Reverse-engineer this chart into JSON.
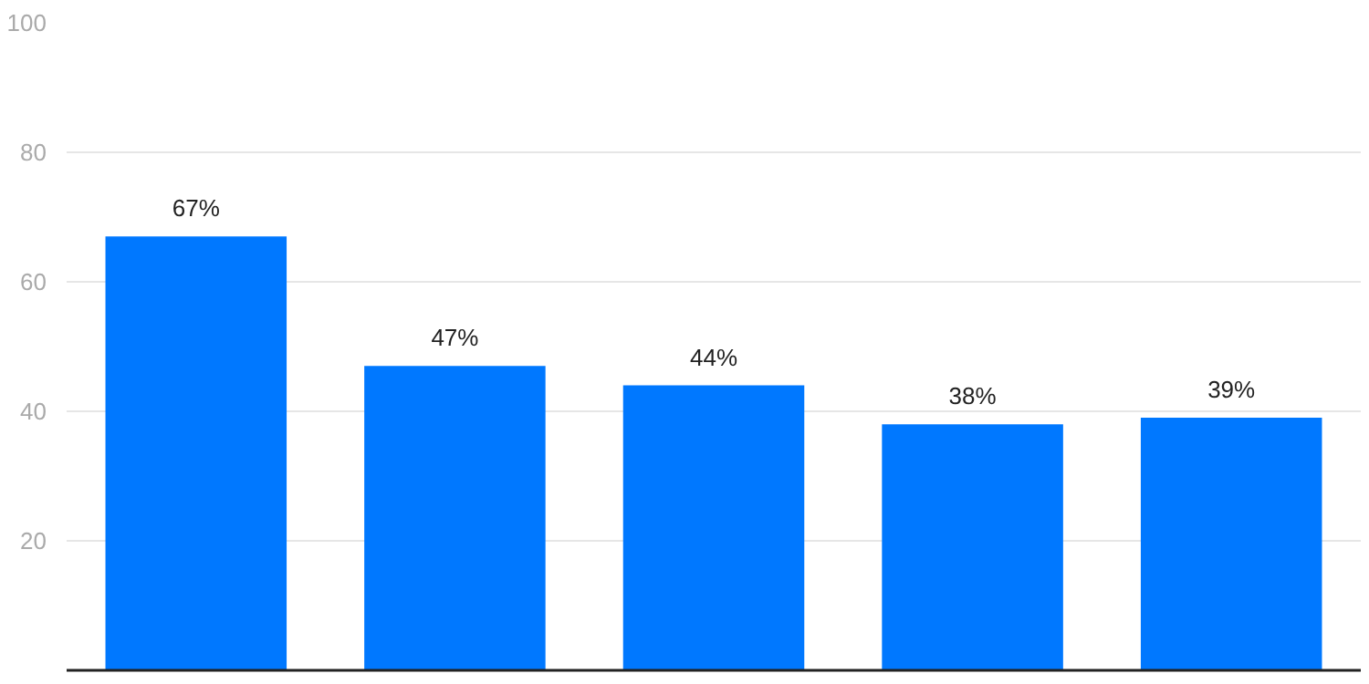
{
  "chart_data": {
    "type": "bar",
    "categories": [
      null,
      null,
      null,
      null,
      null
    ],
    "values": [
      67,
      47,
      44,
      38,
      39
    ],
    "value_labels": [
      "67%",
      "47%",
      "44%",
      "38%",
      "39%"
    ],
    "color": "#0078ff",
    "ylim": [
      0,
      100
    ],
    "yticks": [
      20,
      40,
      60,
      80,
      100
    ],
    "grid": "y",
    "tick_labels": "y"
  }
}
